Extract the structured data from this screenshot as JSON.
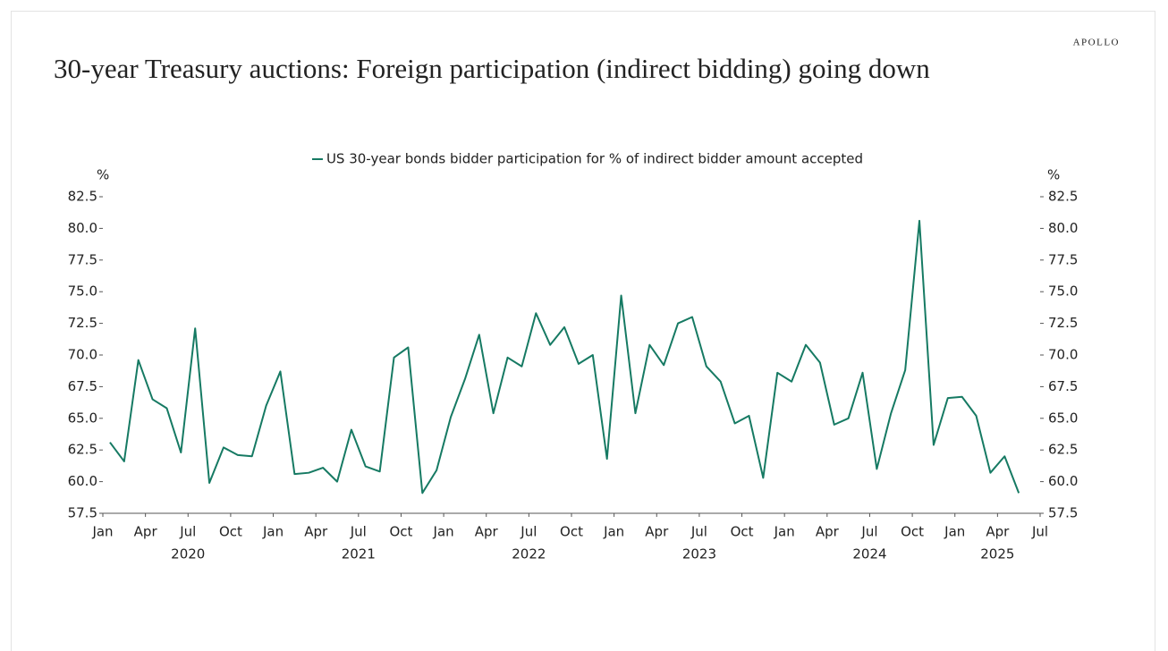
{
  "brand": "APOLLO",
  "chart_data": {
    "type": "line",
    "title": "30-year Treasury auctions: Foreign participation (indirect bidding) going down",
    "y_label": "%",
    "y2_label": "%",
    "x": [
      "2020-01",
      "2020-02",
      "2020-03",
      "2020-04",
      "2020-05",
      "2020-06",
      "2020-07",
      "2020-08",
      "2020-09",
      "2020-10",
      "2020-11",
      "2020-12",
      "2021-01",
      "2021-02",
      "2021-03",
      "2021-04",
      "2021-05",
      "2021-06",
      "2021-07",
      "2021-08",
      "2021-09",
      "2021-10",
      "2021-11",
      "2021-12",
      "2022-01",
      "2022-02",
      "2022-03",
      "2022-04",
      "2022-05",
      "2022-06",
      "2022-07",
      "2022-08",
      "2022-09",
      "2022-10",
      "2022-11",
      "2022-12",
      "2023-01",
      "2023-02",
      "2023-03",
      "2023-04",
      "2023-05",
      "2023-06",
      "2023-07",
      "2023-08",
      "2023-09",
      "2023-10",
      "2023-11",
      "2023-12",
      "2024-01",
      "2024-02",
      "2024-03",
      "2024-04",
      "2024-05",
      "2024-06",
      "2024-07",
      "2024-08",
      "2024-09",
      "2024-10",
      "2024-11",
      "2024-12",
      "2025-01",
      "2025-02",
      "2025-03",
      "2025-04",
      "2025-05"
    ],
    "series": [
      {
        "name": "US 30-year bonds bidder participation for % of indirect bidder amount accepted",
        "color": "#167a63",
        "values": [
          63.1,
          61.6,
          69.6,
          66.5,
          65.8,
          62.3,
          72.1,
          59.9,
          62.7,
          62.1,
          62.0,
          66.0,
          68.7,
          60.6,
          60.7,
          61.1,
          60.0,
          64.1,
          61.2,
          60.8,
          69.8,
          70.6,
          59.1,
          60.9,
          65.1,
          68.1,
          71.6,
          65.4,
          69.8,
          69.1,
          73.3,
          70.8,
          72.2,
          69.3,
          70.0,
          61.8,
          74.7,
          65.4,
          70.8,
          69.2,
          72.5,
          73.0,
          69.1,
          67.9,
          64.6,
          65.2,
          60.3,
          68.6,
          67.9,
          70.8,
          69.4,
          64.5,
          65.0,
          68.6,
          61.0,
          65.4,
          68.8,
          80.6,
          62.9,
          66.6,
          66.7,
          65.2,
          60.7,
          62.0,
          59.1
        ]
      }
    ],
    "xlim": [
      "2020-01",
      "2025-07"
    ],
    "xticks": [
      {
        "value": "2020-01",
        "label": "Jan"
      },
      {
        "value": "2020-04",
        "label": "Apr"
      },
      {
        "value": "2020-07",
        "label": "Jul"
      },
      {
        "value": "2020-10",
        "label": "Oct"
      },
      {
        "value": "2021-01",
        "label": "Jan"
      },
      {
        "value": "2021-04",
        "label": "Apr"
      },
      {
        "value": "2021-07",
        "label": "Jul"
      },
      {
        "value": "2021-10",
        "label": "Oct"
      },
      {
        "value": "2022-01",
        "label": "Jan"
      },
      {
        "value": "2022-04",
        "label": "Apr"
      },
      {
        "value": "2022-07",
        "label": "Jul"
      },
      {
        "value": "2022-10",
        "label": "Oct"
      },
      {
        "value": "2023-01",
        "label": "Jan"
      },
      {
        "value": "2023-04",
        "label": "Apr"
      },
      {
        "value": "2023-07",
        "label": "Jul"
      },
      {
        "value": "2023-10",
        "label": "Oct"
      },
      {
        "value": "2024-01",
        "label": "Jan"
      },
      {
        "value": "2024-04",
        "label": "Apr"
      },
      {
        "value": "2024-07",
        "label": "Jul"
      },
      {
        "value": "2024-10",
        "label": "Oct"
      },
      {
        "value": "2025-01",
        "label": "Jan"
      },
      {
        "value": "2025-04",
        "label": "Apr"
      },
      {
        "value": "2025-07",
        "label": "Jul"
      }
    ],
    "xtick_groups": [
      "2020",
      "2021",
      "2022",
      "2023",
      "2024",
      "2025"
    ],
    "ylim": [
      57.5,
      82.5
    ],
    "yticks": [
      57.5,
      {
        "value": 60,
        "label": "60.0"
      },
      62.5,
      {
        "value": 65,
        "label": "65.0"
      },
      67.5,
      {
        "value": 70,
        "label": "70.0"
      },
      72.5,
      {
        "value": 75,
        "label": "75.0"
      },
      77.5,
      {
        "value": 80,
        "label": "80.0"
      },
      82.5
    ],
    "y2lim": [
      57.5,
      82.5
    ],
    "y2ticks": [
      57.5,
      {
        "value": 60,
        "label": "60.0"
      },
      62.5,
      {
        "value": 65,
        "label": "65.0"
      },
      67.5,
      {
        "value": 70,
        "label": "70.0"
      },
      72.5,
      {
        "value": 75,
        "label": "75.0"
      },
      77.5,
      {
        "value": 80,
        "label": "80.0"
      },
      82.5
    ],
    "grid": false,
    "legend": "top"
  }
}
